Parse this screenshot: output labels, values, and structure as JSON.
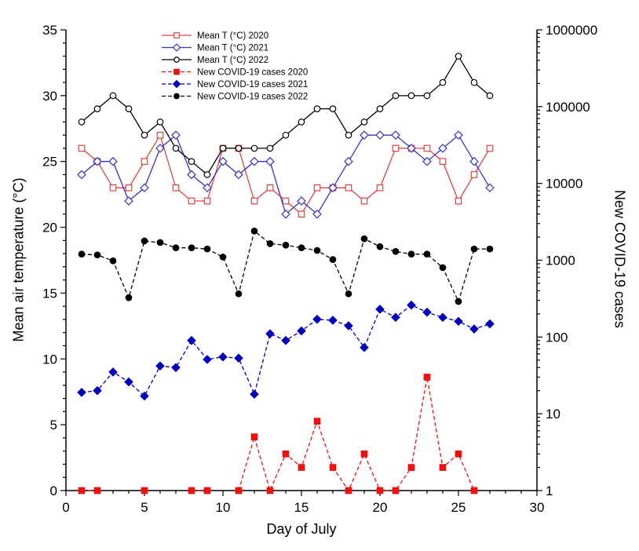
{
  "chart_data": {
    "type": "line",
    "title": "",
    "xlabel": "Day of July",
    "ylabel_left": "Mean air temperature (°C)",
    "ylabel_right": "New COVID-19 cases",
    "grid": false,
    "legend_position": "top-inside",
    "x_axis": {
      "min": 0,
      "max": 30,
      "major_tick_step": 5,
      "minor_tick_step": 1
    },
    "y_left_axis": {
      "min": 0,
      "max": 35,
      "major_tick_step": 5,
      "minor_tick_step": 1
    },
    "y_right_axis": {
      "scale": "log",
      "min": 1,
      "max": 1000000,
      "tick_labels": [
        "1",
        "10",
        "100",
        "1000",
        "10000",
        "100000",
        "1000000"
      ]
    },
    "days": [
      1,
      2,
      3,
      4,
      5,
      6,
      7,
      8,
      9,
      10,
      11,
      12,
      13,
      14,
      15,
      16,
      17,
      18,
      19,
      20,
      21,
      22,
      23,
      24,
      25,
      26,
      27
    ],
    "series": [
      {
        "name": "Mean T (°C) 2020",
        "axis": "left",
        "color": "#dd4343",
        "marker": "square",
        "fill": "open",
        "line": "solid",
        "values": [
          26,
          25,
          23,
          23,
          25,
          27,
          23,
          22,
          22,
          26,
          26,
          22,
          23,
          22,
          21,
          23,
          23,
          23,
          22,
          23,
          26,
          26,
          26,
          25,
          22,
          24,
          26
        ]
      },
      {
        "name": "Mean T (°C) 2021",
        "axis": "left",
        "color": "#3434c4",
        "marker": "diamond",
        "fill": "open",
        "line": "solid",
        "values": [
          24,
          25,
          25,
          22,
          23,
          26,
          27,
          24,
          23,
          25,
          24,
          25,
          25,
          21,
          22,
          21,
          23,
          25,
          27,
          27,
          27,
          26,
          25,
          26,
          27,
          25,
          23
        ]
      },
      {
        "name": "Mean T (°C) 2022",
        "axis": "left",
        "color": "#000000",
        "marker": "circle",
        "fill": "open",
        "line": "solid",
        "values": [
          28,
          29,
          30,
          29,
          27,
          28,
          26,
          25,
          24,
          26,
          26,
          26,
          26,
          27,
          28,
          29,
          29,
          27,
          28,
          29,
          30,
          30,
          30,
          31,
          33,
          31,
          30
        ]
      },
      {
        "name": "New COVID-19 cases 2020",
        "axis": "right",
        "color": "#ee1111",
        "marker": "square",
        "fill": "solid",
        "line": "dashed",
        "values": [
          1,
          1,
          null,
          null,
          1,
          null,
          null,
          1,
          1,
          null,
          1,
          5,
          1,
          3,
          2,
          8,
          2,
          1,
          3,
          1,
          1,
          2,
          30,
          2,
          3,
          1,
          null
        ]
      },
      {
        "name": "New COVID-19 cases 2021",
        "axis": "right",
        "color": "#0000bb",
        "marker": "diamond",
        "fill": "solid",
        "line": "dashed",
        "values": [
          19,
          20,
          35,
          26,
          17,
          42,
          40,
          90,
          51,
          55,
          53,
          18,
          110,
          90,
          120,
          170,
          165,
          140,
          73,
          230,
          180,
          260,
          210,
          180,
          160,
          127,
          148
        ]
      },
      {
        "name": "New COVID-19 cases 2022",
        "axis": "right",
        "color": "#000000",
        "marker": "circle",
        "fill": "solid",
        "line": "dashed",
        "values": [
          1200,
          1170,
          980,
          325,
          1780,
          1700,
          1450,
          1450,
          1400,
          1100,
          365,
          2400,
          1640,
          1570,
          1450,
          1340,
          1020,
          365,
          1900,
          1500,
          1300,
          1200,
          1200,
          800,
          290,
          1400,
          1400
        ]
      }
    ]
  }
}
